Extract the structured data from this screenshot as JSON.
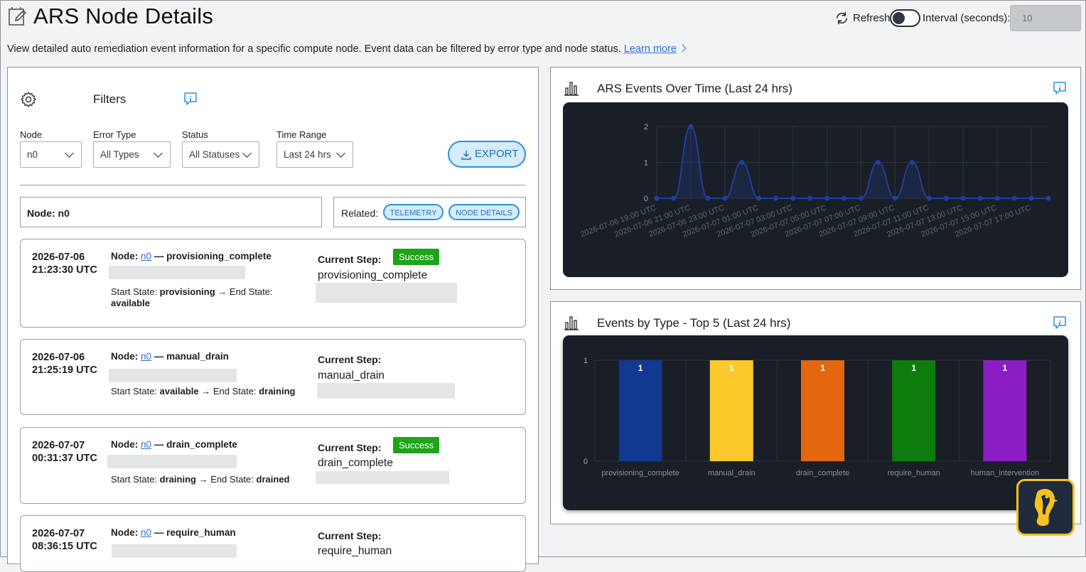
{
  "header": {
    "title": "ARS Node Details",
    "refresh_label": "Refresh",
    "interval_label": "Interval (seconds):",
    "interval_value": "10"
  },
  "description": {
    "text": "View detailed auto remediation event information for a specific compute node. Event data can be filtered by error type and node status.",
    "link_text": "Learn more"
  },
  "filters": {
    "title": "Filters",
    "node_label": "Node",
    "node_value": "n0",
    "error_type_label": "Error Type",
    "error_type_value": "All Types",
    "status_label": "Status",
    "status_value": "All Statuses",
    "time_range_label": "Time Range",
    "time_range_value": "Last 24 hrs",
    "export_label": "EXPORT"
  },
  "node_summary": {
    "node_text": "Node: n0",
    "related_label": "Related:",
    "telemetry_label": "TELEMETRY",
    "node_details_label": "NODE DETAILS"
  },
  "events": [
    {
      "date": "2026-07-06",
      "time": "21:23:30 UTC",
      "node_prefix": "Node:",
      "node": "n0",
      "name": "— provisioning_complete",
      "start_label": "Start State:",
      "start": "provisioning",
      "end_label": "→ End State:",
      "end": "available",
      "step_label": "Current Step:",
      "step": "provisioning_complete",
      "badge": "Success"
    },
    {
      "date": "2026-07-06",
      "time": "21:25:19 UTC",
      "node_prefix": "Node:",
      "node": "n0",
      "name": "— manual_drain",
      "start_label": "Start State:",
      "start": "available",
      "end_label": "→ End State:",
      "end": "draining",
      "step_label": "Current Step:",
      "step": "manual_drain",
      "badge": ""
    },
    {
      "date": "2026-07-07",
      "time": "00:31:37 UTC",
      "node_prefix": "Node:",
      "node": "n0",
      "name": "— drain_complete",
      "start_label": "Start State:",
      "start": "draining",
      "end_label": "→ End State:",
      "end": "drained",
      "step_label": "Current Step:",
      "step": "drain_complete",
      "badge": "Success"
    },
    {
      "date": "2026-07-07",
      "time": "08:36:15 UTC",
      "node_prefix": "Node:",
      "node": "n0",
      "name": "— require_human",
      "step_label": "Current Step:",
      "step": "require_human",
      "badge": ""
    }
  ],
  "chart_panel_1": {
    "title": "ARS Events Over Time (Last 24 hrs)"
  },
  "chart_panel_2": {
    "title": "Events by Type - Top 5 (Last 24 hrs)"
  },
  "chart_data": [
    {
      "type": "area",
      "title": "ARS Events Over Time (Last 24 hrs)",
      "x": [
        "2026-07-06 19:00 UTC",
        "2026-07-06 20:00 UTC",
        "2026-07-06 21:00 UTC",
        "2026-07-06 22:00 UTC",
        "2026-07-06 23:00 UTC",
        "2026-07-07 00:00 UTC",
        "2026-07-07 01:00 UTC",
        "2026-07-07 02:00 UTC",
        "2026-07-07 03:00 UTC",
        "2026-07-07 04:00 UTC",
        "2026-07-07 05:00 UTC",
        "2026-07-07 06:00 UTC",
        "2026-07-07 07:00 UTC",
        "2026-07-07 08:00 UTC",
        "2026-07-07 09:00 UTC",
        "2026-07-07 10:00 UTC",
        "2026-07-07 11:00 UTC",
        "2026-07-07 12:00 UTC",
        "2026-07-07 13:00 UTC",
        "2026-07-07 14:00 UTC",
        "2026-07-07 15:00 UTC",
        "2026-07-07 16:00 UTC",
        "2026-07-07 17:00 UTC",
        "2026-07-07 18:00 UTC"
      ],
      "xtick_labels": [
        "2026-07-06 19:00 UTC",
        "2026-07-06 21:00 UTC",
        "2026-07-06 23:00 UTC",
        "2026-07-07 01:00 UTC",
        "2026-07-07 03:00 UTC",
        "2026-07-07 05:00 UTC",
        "2026-07-07 07:00 UTC",
        "2026-07-07 09:00 UTC",
        "2026-07-07 11:00 UTC",
        "2026-07-07 13:00 UTC",
        "2026-07-07 15:00 UTC",
        "2026-07-07 17:00 UTC"
      ],
      "values": [
        0,
        0,
        2,
        0,
        0,
        1,
        0,
        0,
        0,
        0,
        0,
        0,
        0,
        1,
        0,
        1,
        0,
        0,
        0,
        0,
        0,
        0,
        0,
        0
      ],
      "yticks": [
        "0",
        "1",
        "2"
      ],
      "ylim": [
        0,
        2
      ],
      "color": "#1e3f9a",
      "grid": true
    },
    {
      "type": "bar",
      "title": "Events by Type - Top 5 (Last 24 hrs)",
      "categories": [
        "provisioning_complete",
        "manual_drain",
        "drain_complete",
        "require_human",
        "human_intervention"
      ],
      "values": [
        1,
        1,
        1,
        1,
        1
      ],
      "colors": [
        "#12388f",
        "#fcc92c",
        "#e4670f",
        "#0d7c0d",
        "#8a1ec4"
      ],
      "yticks": [
        "0",
        "1"
      ],
      "ylim": [
        0,
        1
      ],
      "grid": true
    }
  ]
}
